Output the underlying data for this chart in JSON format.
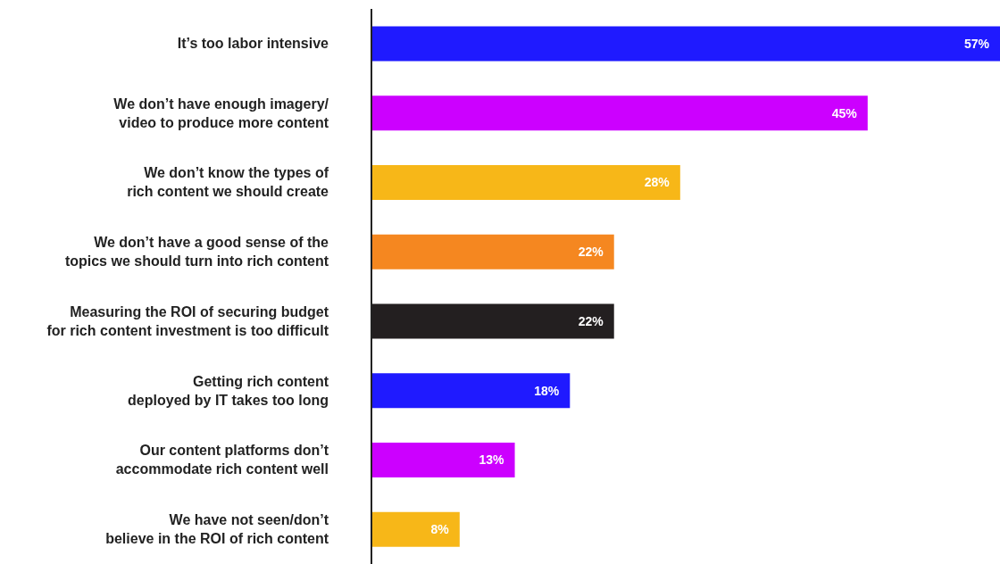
{
  "chart_data": {
    "type": "bar",
    "orientation": "horizontal",
    "categories": [
      "It’s too labor intensive",
      "We don’t have enough imagery/\nvideo to produce more content",
      "We don’t know the types of\nrich content we should create",
      "We don’t have a good sense of the\ntopics we should turn into rich content",
      "Measuring the ROI of securing budget\nfor rich content investment is too difficult",
      "Getting rich content\ndeployed by IT takes too long",
      "Our content platforms don’t\naccommodate rich content well",
      "We have not seen/don’t\nbelieve in the ROI of rich content"
    ],
    "values": [
      57,
      45,
      28,
      22,
      22,
      18,
      13,
      8
    ],
    "colors": [
      "#1f1aff",
      "#cc00ff",
      "#f7b718",
      "#f58720",
      "#231f20",
      "#1f1aff",
      "#cc00ff",
      "#f7b718"
    ],
    "value_labels": [
      "57%",
      "45%",
      "28%",
      "22%",
      "22%",
      "18%",
      "13%",
      "8%"
    ]
  }
}
